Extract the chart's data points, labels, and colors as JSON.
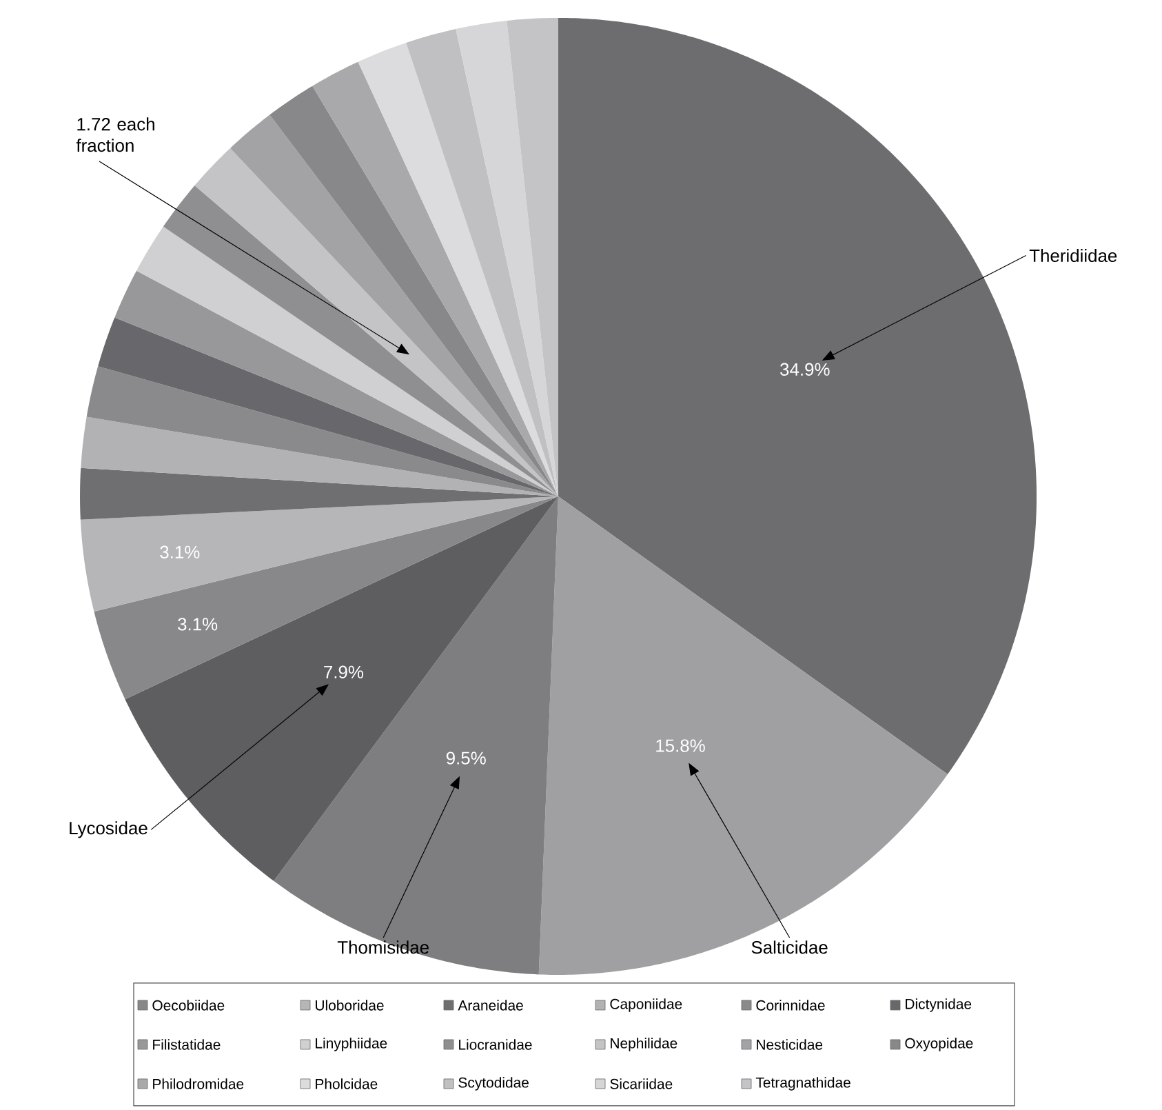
{
  "chart_data": {
    "type": "pie",
    "categories": [
      "Theridiidae",
      "Salticidae",
      "Thomisidae",
      "Lycosidae",
      "Oecobiidae",
      "Uloboridae",
      "Araneidae",
      "Caponiidae",
      "Corinnidae",
      "Dictynidae",
      "Filistatidae",
      "Linyphiidae",
      "Liocranidae",
      "Nephilidae",
      "Nesticidae",
      "Oxyopidae",
      "Philodromidae",
      "Pholcidae",
      "Scytodidae",
      "Sicariidae",
      "Tetragnathidae"
    ],
    "values": [
      34.9,
      15.8,
      9.5,
      7.9,
      3.1,
      3.1,
      1.72,
      1.72,
      1.72,
      1.72,
      1.72,
      1.72,
      1.72,
      1.72,
      1.72,
      1.72,
      1.72,
      1.72,
      1.72,
      1.72,
      1.72
    ],
    "value_labels": [
      "34.9%",
      "15.8%",
      "9.5%",
      "7.9%",
      "3.1%",
      "3.1%",
      null,
      null,
      null,
      null,
      null,
      null,
      null,
      null,
      null,
      null,
      null,
      null,
      null,
      null,
      null
    ],
    "colors": [
      "#6d6d6f",
      "#a0a0a2",
      "#7e7e80",
      "#5e5e60",
      "#88888a",
      "#b6b6b8",
      "#6f6f71",
      "#b2b2b4",
      "#8a8a8c",
      "#68686c",
      "#98989a",
      "#d0d0d2",
      "#8f8f91",
      "#c4c4c6",
      "#a3a3a5",
      "#88888a",
      "#a9a9ab",
      "#dcdcde",
      "#c0c0c2",
      "#d6d6d8",
      "#c4c4c6"
    ],
    "annotations": [
      "1.72 each fraction"
    ],
    "legend": "bottom"
  }
}
